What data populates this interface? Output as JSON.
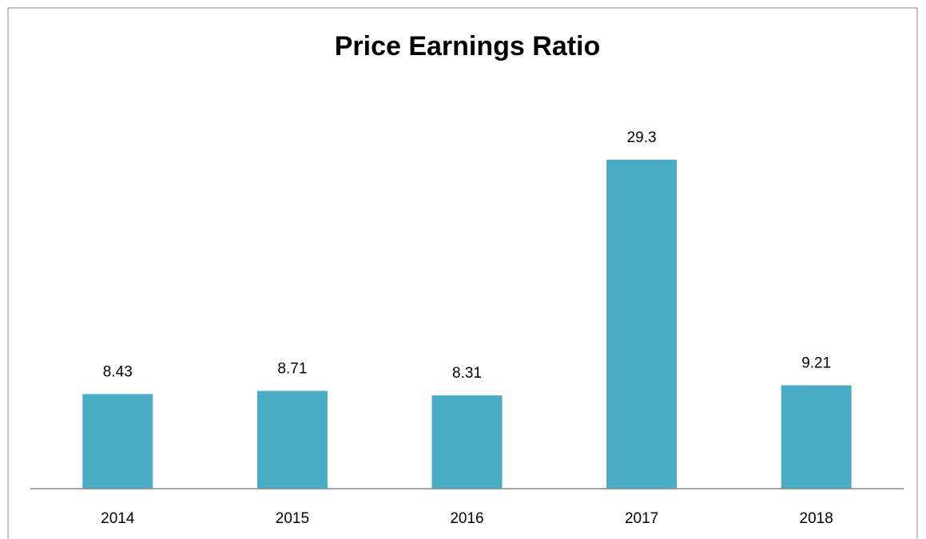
{
  "chart_data": {
    "type": "bar",
    "title": "Price Earnings Ratio",
    "categories": [
      "2014",
      "2015",
      "2016",
      "2017",
      "2018"
    ],
    "values": [
      8.43,
      8.71,
      8.31,
      29.3,
      9.21
    ],
    "color": "#4bacc6"
  }
}
